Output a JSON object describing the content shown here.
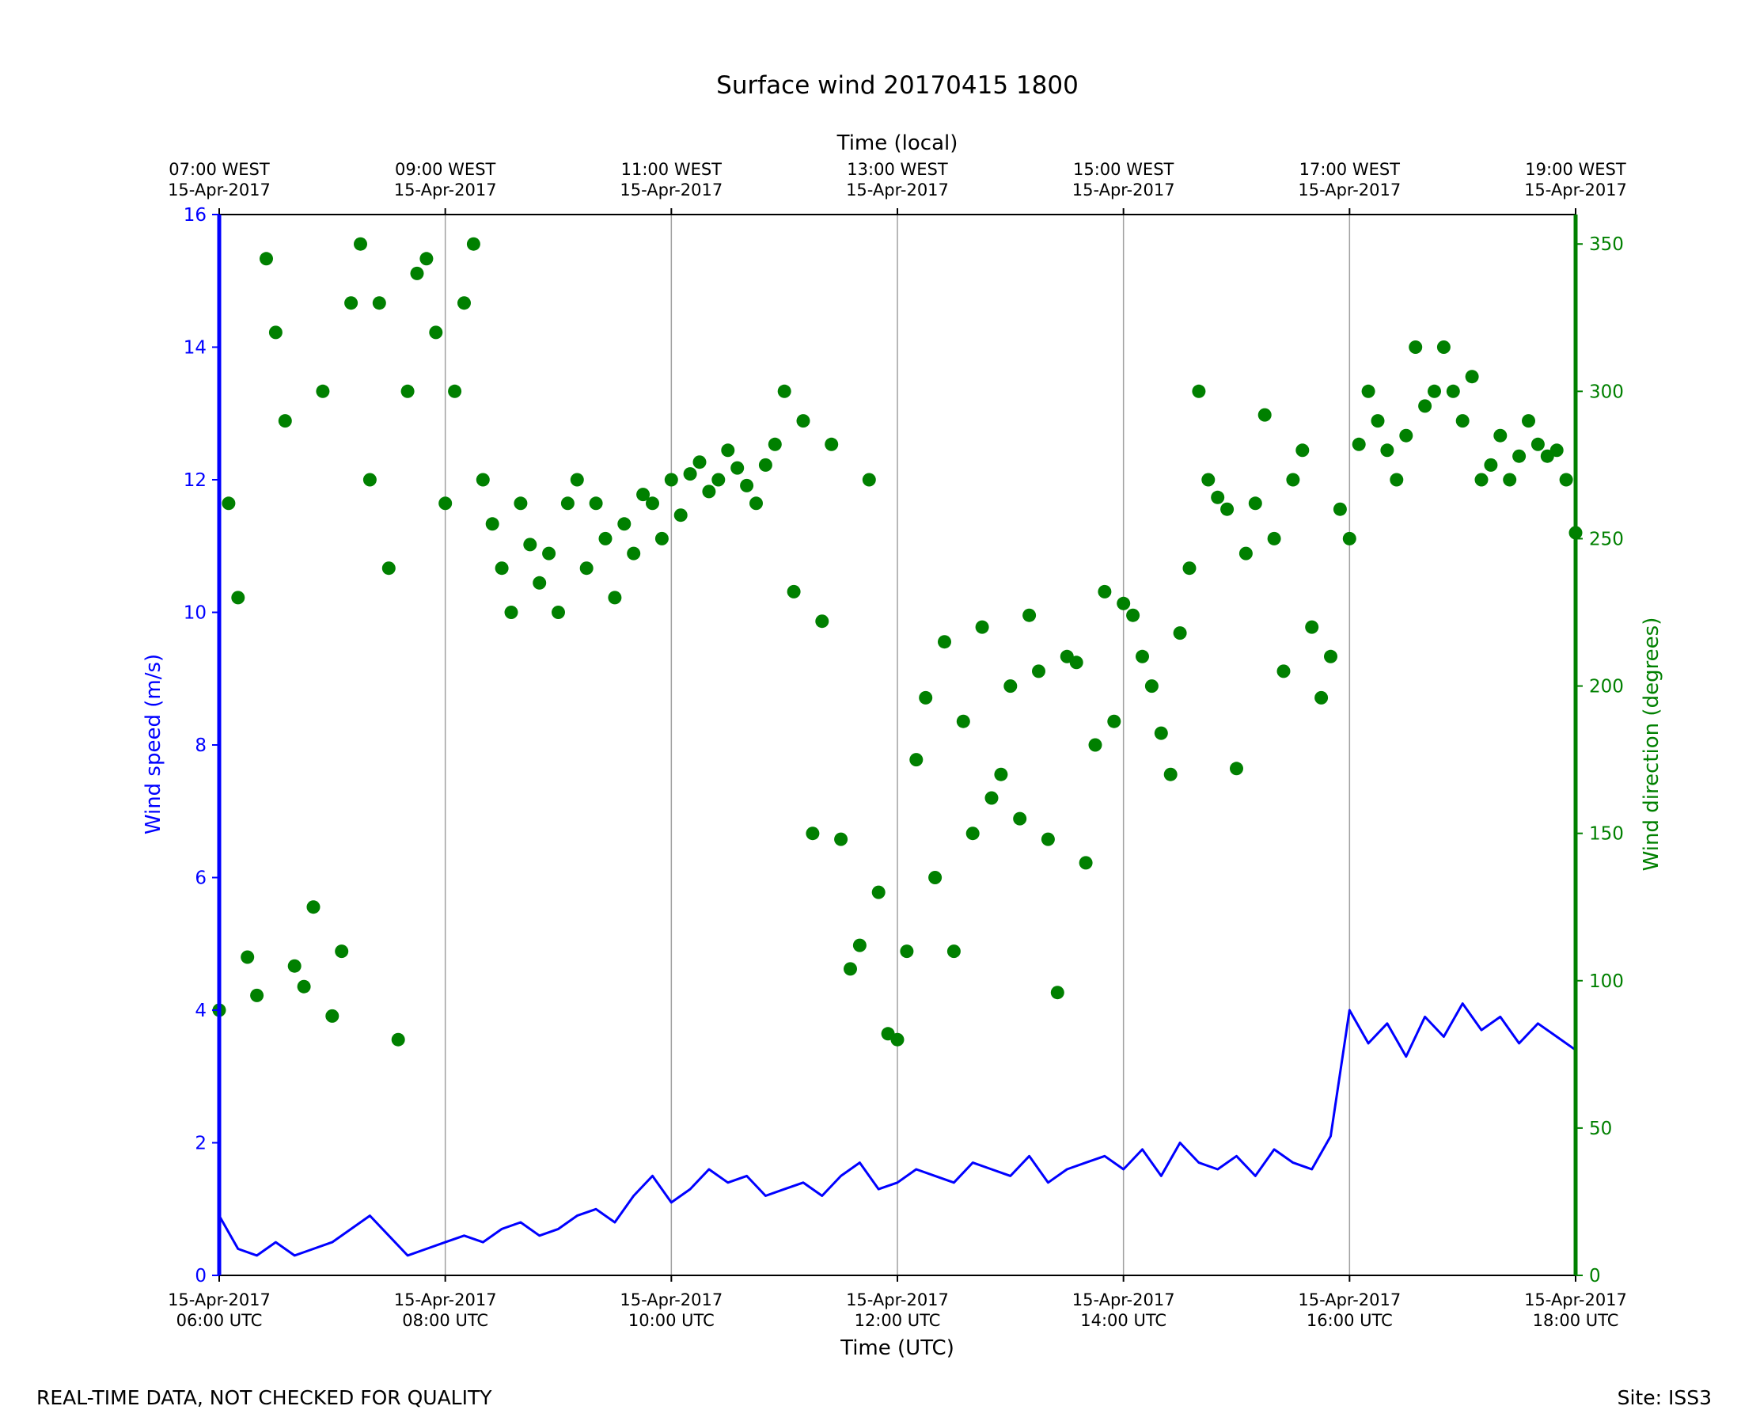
{
  "colors": {
    "speed": "#0000ff",
    "direction": "#008000",
    "grid": "#a0a0a0",
    "axis": "#000000"
  },
  "footer": {
    "left": "REAL-TIME DATA, NOT CHECKED FOR QUALITY",
    "right": "Site: ISS3"
  },
  "chart_data": {
    "type": "line+scatter",
    "title": "Surface wind 20170415 1800",
    "xlabel": "Time (UTC)",
    "xlabel_top": "Time (local)",
    "ylabel_left": "Wind speed (m/s)",
    "ylabel_right": "Wind direction (degrees)",
    "xlim": [
      "2017-04-15T06:00Z",
      "2017-04-15T18:00Z"
    ],
    "ylim_left": [
      0,
      16
    ],
    "ylim_right": [
      0,
      360
    ],
    "grid": "vertical at major time ticks",
    "x_ticks_bottom": [
      {
        "time": "2017-04-15T06:00Z",
        "line1": "15-Apr-2017",
        "line2": "06:00 UTC"
      },
      {
        "time": "2017-04-15T08:00Z",
        "line1": "15-Apr-2017",
        "line2": "08:00 UTC"
      },
      {
        "time": "2017-04-15T10:00Z",
        "line1": "15-Apr-2017",
        "line2": "10:00 UTC"
      },
      {
        "time": "2017-04-15T12:00Z",
        "line1": "15-Apr-2017",
        "line2": "12:00 UTC"
      },
      {
        "time": "2017-04-15T14:00Z",
        "line1": "15-Apr-2017",
        "line2": "14:00 UTC"
      },
      {
        "time": "2017-04-15T16:00Z",
        "line1": "15-Apr-2017",
        "line2": "16:00 UTC"
      },
      {
        "time": "2017-04-15T18:00Z",
        "line1": "15-Apr-2017",
        "line2": "18:00 UTC"
      }
    ],
    "x_ticks_top": [
      {
        "time": "2017-04-15T06:00Z",
        "line1": "07:00 WEST",
        "line2": "15-Apr-2017"
      },
      {
        "time": "2017-04-15T08:00Z",
        "line1": "09:00 WEST",
        "line2": "15-Apr-2017"
      },
      {
        "time": "2017-04-15T10:00Z",
        "line1": "11:00 WEST",
        "line2": "15-Apr-2017"
      },
      {
        "time": "2017-04-15T12:00Z",
        "line1": "13:00 WEST",
        "line2": "15-Apr-2017"
      },
      {
        "time": "2017-04-15T14:00Z",
        "line1": "15:00 WEST",
        "line2": "15-Apr-2017"
      },
      {
        "time": "2017-04-15T16:00Z",
        "line1": "17:00 WEST",
        "line2": "15-Apr-2017"
      },
      {
        "time": "2017-04-15T18:00Z",
        "line1": "19:00 WEST",
        "line2": "15-Apr-2017"
      }
    ],
    "y_ticks_left": [
      "0",
      "2",
      "4",
      "6",
      "8",
      "10",
      "12",
      "14",
      "16"
    ],
    "y_ticks_right": [
      "0",
      "50",
      "100",
      "150",
      "200",
      "250",
      "300",
      "350"
    ],
    "series": [
      {
        "name": "Wind speed",
        "kind": "line",
        "axis": "left",
        "units": "m/s",
        "x": [
          "06:00",
          "06:10",
          "06:20",
          "06:30",
          "06:40",
          "06:50",
          "07:00",
          "07:10",
          "07:20",
          "07:30",
          "07:40",
          "07:50",
          "08:00",
          "08:10",
          "08:20",
          "08:30",
          "08:40",
          "08:50",
          "09:00",
          "09:10",
          "09:20",
          "09:30",
          "09:40",
          "09:50",
          "10:00",
          "10:10",
          "10:20",
          "10:30",
          "10:40",
          "10:50",
          "11:00",
          "11:10",
          "11:20",
          "11:30",
          "11:40",
          "11:50",
          "12:00",
          "12:10",
          "12:20",
          "12:30",
          "12:40",
          "12:50",
          "13:00",
          "13:10",
          "13:20",
          "13:30",
          "13:40",
          "13:50",
          "14:00",
          "14:10",
          "14:20",
          "14:30",
          "14:40",
          "14:50",
          "15:00",
          "15:10",
          "15:20",
          "15:30",
          "15:40",
          "15:50",
          "16:00",
          "16:10",
          "16:20",
          "16:30",
          "16:40",
          "16:50",
          "17:00",
          "17:10",
          "17:20",
          "17:30",
          "17:40",
          "17:50",
          "18:00"
        ],
        "values": [
          0.9,
          0.4,
          0.3,
          0.5,
          0.3,
          0.4,
          0.5,
          0.7,
          0.9,
          0.6,
          0.3,
          0.4,
          0.5,
          0.6,
          0.5,
          0.7,
          0.8,
          0.6,
          0.7,
          0.9,
          1.0,
          0.8,
          1.2,
          1.5,
          1.1,
          1.3,
          1.6,
          1.4,
          1.5,
          1.2,
          1.3,
          1.4,
          1.2,
          1.5,
          1.7,
          1.3,
          1.4,
          1.6,
          1.5,
          1.4,
          1.7,
          1.6,
          1.5,
          1.8,
          1.4,
          1.6,
          1.7,
          1.8,
          1.6,
          1.9,
          1.5,
          2.0,
          1.7,
          1.6,
          1.8,
          1.5,
          1.9,
          1.7,
          1.6,
          2.1,
          4.0,
          3.5,
          3.8,
          3.3,
          3.9,
          3.6,
          4.1,
          3.7,
          3.9,
          3.5,
          3.8,
          3.6,
          3.4
        ]
      },
      {
        "name": "Wind direction",
        "kind": "scatter",
        "axis": "right",
        "units": "degrees",
        "x": [
          "06:00",
          "06:05",
          "06:10",
          "06:15",
          "06:20",
          "06:25",
          "06:30",
          "06:35",
          "06:40",
          "06:45",
          "06:50",
          "06:55",
          "07:00",
          "07:05",
          "07:10",
          "07:15",
          "07:20",
          "07:25",
          "07:30",
          "07:35",
          "07:40",
          "07:45",
          "07:50",
          "07:55",
          "08:00",
          "08:05",
          "08:10",
          "08:15",
          "08:20",
          "08:25",
          "08:30",
          "08:35",
          "08:40",
          "08:45",
          "08:50",
          "08:55",
          "09:00",
          "09:05",
          "09:10",
          "09:15",
          "09:20",
          "09:25",
          "09:30",
          "09:35",
          "09:40",
          "09:45",
          "09:50",
          "09:55",
          "10:00",
          "10:05",
          "10:10",
          "10:15",
          "10:20",
          "10:25",
          "10:30",
          "10:35",
          "10:40",
          "10:45",
          "10:50",
          "10:55",
          "11:00",
          "11:05",
          "11:10",
          "11:15",
          "11:20",
          "11:25",
          "11:30",
          "11:35",
          "11:40",
          "11:45",
          "11:50",
          "11:55",
          "12:00",
          "12:05",
          "12:10",
          "12:15",
          "12:20",
          "12:25",
          "12:30",
          "12:35",
          "12:40",
          "12:45",
          "12:50",
          "12:55",
          "13:00",
          "13:05",
          "13:10",
          "13:15",
          "13:20",
          "13:25",
          "13:30",
          "13:35",
          "13:40",
          "13:45",
          "13:50",
          "13:55",
          "14:00",
          "14:05",
          "14:10",
          "14:15",
          "14:20",
          "14:25",
          "14:30",
          "14:35",
          "14:40",
          "14:45",
          "14:50",
          "14:55",
          "15:00",
          "15:05",
          "15:10",
          "15:15",
          "15:20",
          "15:25",
          "15:30",
          "15:35",
          "15:40",
          "15:45",
          "15:50",
          "15:55",
          "16:00",
          "16:05",
          "16:10",
          "16:15",
          "16:20",
          "16:25",
          "16:30",
          "16:35",
          "16:40",
          "16:45",
          "16:50",
          "16:55",
          "17:00",
          "17:05",
          "17:10",
          "17:15",
          "17:20",
          "17:25",
          "17:30",
          "17:35",
          "17:40",
          "17:45",
          "17:50",
          "17:55",
          "18:00"
        ],
        "values": [
          90,
          262,
          230,
          108,
          95,
          345,
          320,
          290,
          105,
          98,
          125,
          300,
          88,
          110,
          330,
          350,
          270,
          330,
          240,
          80,
          300,
          340,
          345,
          320,
          262,
          300,
          330,
          350,
          270,
          255,
          240,
          225,
          262,
          248,
          235,
          245,
          225,
          262,
          270,
          240,
          262,
          250,
          230,
          255,
          245,
          265,
          262,
          250,
          270,
          258,
          272,
          276,
          266,
          270,
          280,
          274,
          268,
          262,
          275,
          282,
          300,
          232,
          290,
          150,
          222,
          282,
          148,
          104,
          112,
          270,
          130,
          82,
          80,
          110,
          175,
          196,
          135,
          215,
          110,
          188,
          150,
          220,
          162,
          170,
          200,
          155,
          224,
          205,
          148,
          96,
          210,
          208,
          140,
          180,
          232,
          188,
          228,
          224,
          210,
          200,
          184,
          170,
          218,
          240,
          300,
          270,
          264,
          260,
          172,
          245,
          262,
          292,
          250,
          205,
          270,
          280,
          220,
          196,
          210,
          260,
          250,
          282,
          300,
          290,
          280,
          270,
          285,
          315,
          295,
          300,
          315,
          300,
          290,
          305,
          270,
          275,
          285,
          270,
          278,
          290,
          282,
          278,
          280,
          270,
          252
        ]
      }
    ]
  }
}
